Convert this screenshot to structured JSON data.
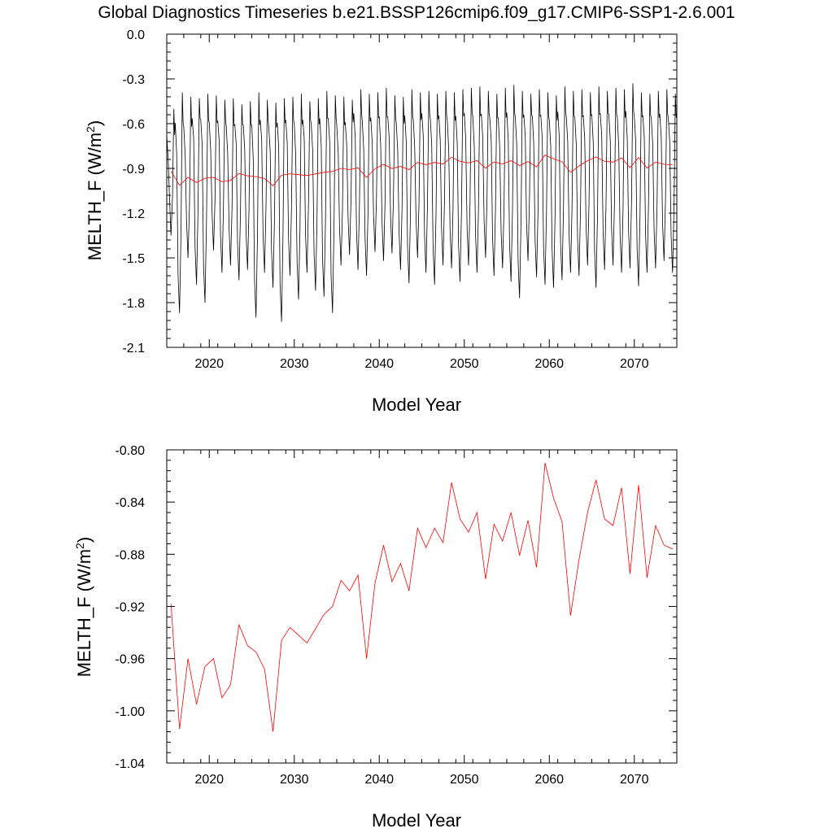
{
  "page_title": "Global Diagnostics Timeseries b.e21.BSSP126cmip6.f09_g17.CMIP6-SSP1-2.6.001",
  "colors": {
    "monthly": "#000000",
    "annual": "#ff0000"
  },
  "chart_data": [
    {
      "type": "line",
      "title": "Global Diagnostics Timeseries b.e21.BSSP126cmip6.f09_g17.CMIP6-SSP1-2.6.001",
      "xlabel": "Model Year",
      "ylabel_main": "MELTH_F (W/m",
      "ylabel_sup": "2",
      "ylabel_close": ")",
      "xlim": [
        2015,
        2075
      ],
      "ylim": [
        -2.1,
        0.0
      ],
      "xticks": [
        2020,
        2030,
        2040,
        2050,
        2060,
        2070
      ],
      "xtick_labels": [
        "2020",
        "2030",
        "2040",
        "2050",
        "2060",
        "2070"
      ],
      "yticks": [
        0.0,
        -0.3,
        -0.6,
        -0.9,
        -1.2,
        -1.5,
        -1.8,
        -2.1
      ],
      "ytick_labels": [
        "0.0",
        "-0.3",
        "-0.6",
        "-0.9",
        "-1.2",
        "-1.5",
        "-1.8",
        "-2.1"
      ],
      "grid": false,
      "monthly_series": {
        "color": "#000000",
        "annual_peak": [
          -0.5,
          -0.39,
          -0.42,
          -0.43,
          -0.4,
          -0.41,
          -0.44,
          -0.43,
          -0.47,
          -0.45,
          -0.39,
          -0.44,
          -0.46,
          -0.43,
          -0.42,
          -0.4,
          -0.45,
          -0.43,
          -0.38,
          -0.41,
          -0.42,
          -0.44,
          -0.37,
          -0.4,
          -0.39,
          -0.36,
          -0.41,
          -0.42,
          -0.37,
          -0.39,
          -0.38,
          -0.4,
          -0.38,
          -0.39,
          -0.37,
          -0.36,
          -0.35,
          -0.38,
          -0.4,
          -0.36,
          -0.34,
          -0.38,
          -0.4,
          -0.37,
          -0.39,
          -0.41,
          -0.35,
          -0.38,
          -0.37,
          -0.39,
          -0.35,
          -0.38,
          -0.36,
          -0.37,
          -0.33,
          -0.39,
          -0.4,
          -0.38,
          -0.37,
          -0.4
        ],
        "annual_trough": [
          -1.35,
          -1.87,
          -1.5,
          -1.68,
          -1.8,
          -1.45,
          -1.6,
          -1.55,
          -1.65,
          -1.58,
          -1.9,
          -1.6,
          -1.7,
          -1.93,
          -1.62,
          -1.78,
          -1.6,
          -1.72,
          -1.76,
          -1.87,
          -1.55,
          -1.48,
          -1.58,
          -1.62,
          -1.46,
          -1.52,
          -1.47,
          -1.58,
          -1.67,
          -1.5,
          -1.6,
          -1.68,
          -1.55,
          -1.57,
          -1.66,
          -1.55,
          -1.6,
          -1.5,
          -1.62,
          -1.57,
          -1.66,
          -1.77,
          -1.52,
          -1.63,
          -1.68,
          -1.7,
          -1.65,
          -1.6,
          -1.62,
          -1.55,
          -1.7,
          -1.58,
          -1.55,
          -1.6,
          -1.57,
          -1.69,
          -1.6,
          -1.57,
          -1.52,
          -1.6
        ],
        "secondary_peak": [
          -0.85,
          -0.8,
          -0.82,
          -0.7,
          -0.75,
          -0.78,
          -0.72,
          -0.8,
          -0.74,
          -0.77,
          -0.83,
          -0.71,
          -0.79,
          -0.76,
          -0.73,
          -0.81,
          -0.7,
          -0.78,
          -0.75,
          -0.72,
          -0.8,
          -0.74,
          -0.69,
          -0.77,
          -0.73,
          -0.75,
          -0.7,
          -0.78,
          -0.72,
          -0.76,
          -0.68,
          -0.74,
          -0.71,
          -0.77,
          -0.73,
          -0.7,
          -0.75,
          -0.69,
          -0.72,
          -0.76,
          -0.71,
          -0.74,
          -0.68,
          -0.73,
          -0.7,
          -0.75,
          -0.69,
          -0.72,
          -0.74,
          -0.7,
          -0.73,
          -0.68,
          -0.71,
          -0.75,
          -0.7,
          -0.72,
          -0.69,
          -0.74,
          -0.7,
          -0.72
        ]
      },
      "annual_series": {
        "color": "#ff0000",
        "x": [
          2015.5,
          2016.5,
          2017.5,
          2018.5,
          2019.5,
          2020.5,
          2021.5,
          2022.5,
          2023.5,
          2024.5,
          2025.5,
          2026.5,
          2027.5,
          2028.5,
          2029.5,
          2030.5,
          2031.5,
          2032.5,
          2033.5,
          2034.5,
          2035.5,
          2036.5,
          2037.5,
          2038.5,
          2039.5,
          2040.5,
          2041.5,
          2042.5,
          2043.5,
          2044.5,
          2045.5,
          2046.5,
          2047.5,
          2048.5,
          2049.5,
          2050.5,
          2051.5,
          2052.5,
          2053.5,
          2054.5,
          2055.5,
          2056.5,
          2057.5,
          2058.5,
          2059.5,
          2060.5,
          2061.5,
          2062.5,
          2063.5,
          2064.5,
          2065.5,
          2066.5,
          2067.5,
          2068.5,
          2069.5,
          2070.5,
          2071.5,
          2072.5,
          2073.5,
          2074.5
        ],
        "values": [
          -0.918,
          -1.014,
          -0.96,
          -0.995,
          -0.966,
          -0.96,
          -0.99,
          -0.98,
          -0.934,
          -0.95,
          -0.955,
          -0.968,
          -1.016,
          -0.946,
          -0.936,
          -0.942,
          -0.948,
          -0.937,
          -0.926,
          -0.92,
          -0.9,
          -0.908,
          -0.896,
          -0.96,
          -0.902,
          -0.873,
          -0.901,
          -0.887,
          -0.908,
          -0.86,
          -0.875,
          -0.86,
          -0.871,
          -0.825,
          -0.853,
          -0.863,
          -0.848,
          -0.899,
          -0.857,
          -0.87,
          -0.848,
          -0.881,
          -0.854,
          -0.89,
          -0.81,
          -0.837,
          -0.855,
          -0.927,
          -0.884,
          -0.848,
          -0.823,
          -0.853,
          -0.858,
          -0.829,
          -0.895,
          -0.827,
          -0.898,
          -0.858,
          -0.873,
          -0.876
        ]
      }
    },
    {
      "type": "line",
      "title": "",
      "xlabel": "Model Year",
      "ylabel_main": "MELTH_F (W/m",
      "ylabel_sup": "2",
      "ylabel_close": ")",
      "xlim": [
        2015,
        2075
      ],
      "ylim": [
        -1.04,
        -0.8
      ],
      "xticks": [
        2020,
        2030,
        2040,
        2050,
        2060,
        2070
      ],
      "xtick_labels": [
        "2020",
        "2030",
        "2040",
        "2050",
        "2060",
        "2070"
      ],
      "yticks": [
        -0.8,
        -0.84,
        -0.88,
        -0.92,
        -0.96,
        -1.0,
        -1.04
      ],
      "ytick_labels": [
        "-0.80",
        "-0.84",
        "-0.88",
        "-0.92",
        "-0.96",
        "-1.00",
        "-1.04"
      ],
      "grid": false,
      "annual_series": {
        "color": "#ff0000",
        "x": [
          2015.5,
          2016.5,
          2017.5,
          2018.5,
          2019.5,
          2020.5,
          2021.5,
          2022.5,
          2023.5,
          2024.5,
          2025.5,
          2026.5,
          2027.5,
          2028.5,
          2029.5,
          2030.5,
          2031.5,
          2032.5,
          2033.5,
          2034.5,
          2035.5,
          2036.5,
          2037.5,
          2038.5,
          2039.5,
          2040.5,
          2041.5,
          2042.5,
          2043.5,
          2044.5,
          2045.5,
          2046.5,
          2047.5,
          2048.5,
          2049.5,
          2050.5,
          2051.5,
          2052.5,
          2053.5,
          2054.5,
          2055.5,
          2056.5,
          2057.5,
          2058.5,
          2059.5,
          2060.5,
          2061.5,
          2062.5,
          2063.5,
          2064.5,
          2065.5,
          2066.5,
          2067.5,
          2068.5,
          2069.5,
          2070.5,
          2071.5,
          2072.5,
          2073.5,
          2074.5
        ],
        "values": [
          -0.918,
          -1.014,
          -0.96,
          -0.995,
          -0.966,
          -0.96,
          -0.99,
          -0.98,
          -0.934,
          -0.95,
          -0.955,
          -0.968,
          -1.016,
          -0.946,
          -0.936,
          -0.942,
          -0.948,
          -0.937,
          -0.926,
          -0.92,
          -0.9,
          -0.908,
          -0.896,
          -0.96,
          -0.902,
          -0.873,
          -0.901,
          -0.887,
          -0.908,
          -0.86,
          -0.875,
          -0.86,
          -0.871,
          -0.825,
          -0.853,
          -0.863,
          -0.848,
          -0.899,
          -0.857,
          -0.87,
          -0.848,
          -0.881,
          -0.854,
          -0.89,
          -0.81,
          -0.837,
          -0.855,
          -0.927,
          -0.884,
          -0.848,
          -0.823,
          -0.853,
          -0.858,
          -0.829,
          -0.895,
          -0.827,
          -0.898,
          -0.858,
          -0.873,
          -0.876
        ]
      }
    }
  ]
}
